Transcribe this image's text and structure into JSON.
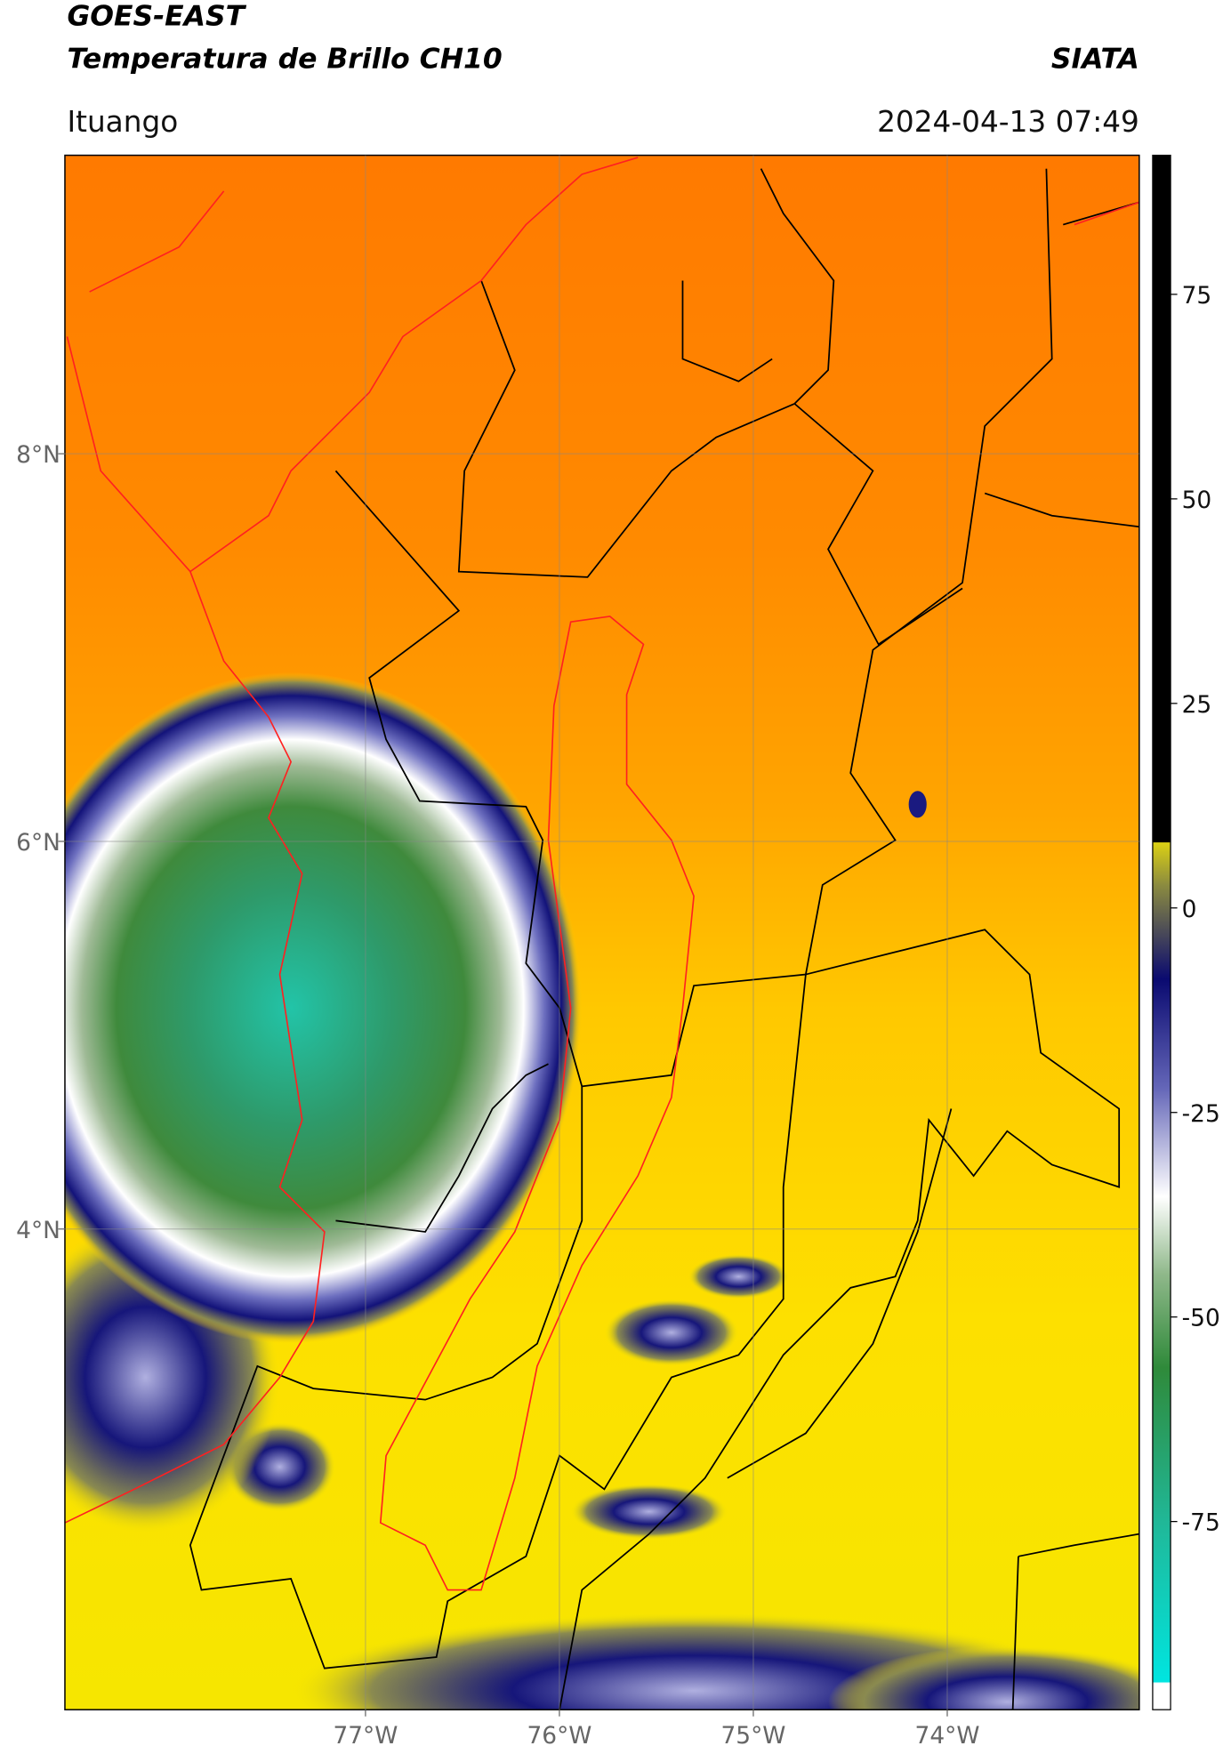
{
  "header": {
    "title": "GOES-EAST",
    "subtitle": "Temperatura de Brillo CH10",
    "source": "SIATA",
    "location": "Ituango",
    "timestamp": "2024-04-13 07:49"
  },
  "map": {
    "xlim": [
      -78.55,
      -73.01
    ],
    "ylim": [
      1.52,
      9.54
    ],
    "xticks": [
      {
        "value": -77,
        "label": "77°W"
      },
      {
        "value": -76,
        "label": "76°W"
      },
      {
        "value": -75,
        "label": "75°W"
      },
      {
        "value": -74,
        "label": "74°W"
      }
    ],
    "yticks": [
      {
        "value": 4,
        "label": "4°N"
      },
      {
        "value": 6,
        "label": "6°N"
      },
      {
        "value": 8,
        "label": "8°N"
      }
    ],
    "grid": true
  },
  "colorbar": {
    "lim": [
      -98,
      92
    ],
    "ticks": [
      -75,
      -50,
      -25,
      0,
      25,
      50,
      75
    ]
  }
}
